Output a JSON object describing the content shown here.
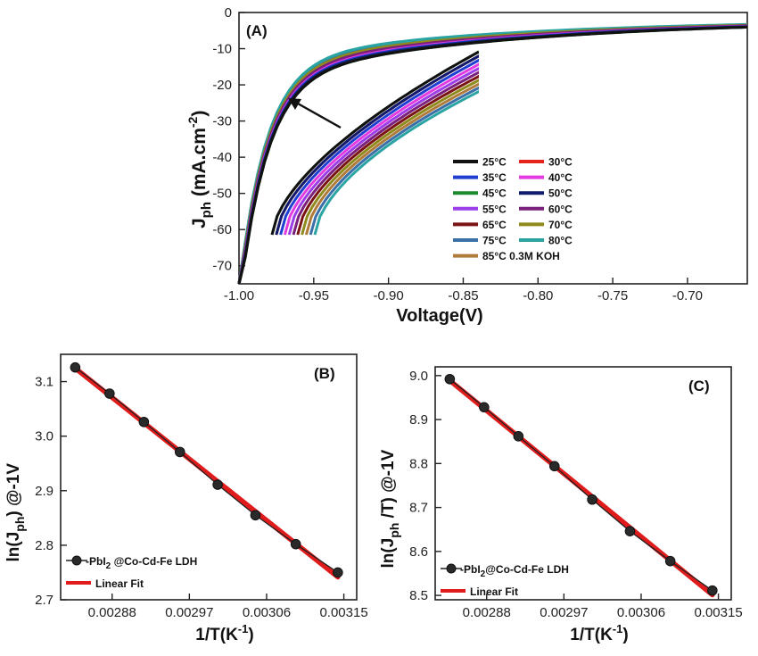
{
  "colors": {
    "fit_line": "#e01b1b",
    "marker": "#2a2a2a"
  },
  "chart_data": [
    {
      "type": "line",
      "panel_label": "(A)",
      "xlabel": "Voltage(V)",
      "ylabel_main": "J",
      "ylabel_sub": "ph",
      "ylabel_unit": " (mA.cm",
      "ylabel_sup": "-2",
      "ylabel_close": ")",
      "xlim": [
        -1.0,
        -0.66
      ],
      "ylim": [
        -75,
        0
      ],
      "xticks": [
        -1.0,
        -0.95,
        -0.9,
        -0.85,
        -0.8,
        -0.75,
        -0.7
      ],
      "xtick_labels": [
        "-1.00",
        "-0.95",
        "-0.90",
        "-0.85",
        "-0.80",
        "-0.75",
        "-0.70"
      ],
      "yticks": [
        0,
        -10,
        -20,
        -30,
        -40,
        -50,
        -60,
        -70
      ],
      "ytick_labels": [
        "0",
        "-10",
        "-20",
        "-30",
        "-40",
        "-50",
        "-60",
        "-70"
      ],
      "legend_position": "bottom-right",
      "series": [
        {
          "name": "25°C",
          "color": "#111111",
          "offset": 0.0
        },
        {
          "name": "30°C",
          "color": "#e3241b",
          "offset": 0.03
        },
        {
          "name": "35°C",
          "color": "#1f3fd1",
          "offset": 0.06
        },
        {
          "name": "40°C",
          "color": "#e33be0",
          "offset": 0.09
        },
        {
          "name": "45°C",
          "color": "#1b8a2e",
          "offset": 0.0
        },
        {
          "name": "50°C",
          "color": "#101b6e",
          "offset": 0.03
        },
        {
          "name": "55°C",
          "color": "#9b3de8",
          "offset": 0.12
        },
        {
          "name": "60°C",
          "color": "#7a1f7a",
          "offset": 0.15
        },
        {
          "name": "65°C",
          "color": "#7a1414",
          "offset": 0.18
        },
        {
          "name": "70°C",
          "color": "#8f8a1c",
          "offset": 0.21
        },
        {
          "name": "75°C",
          "color": "#3a6fa8",
          "offset": 0.27
        },
        {
          "name": "80°C",
          "color": "#2aa3a3",
          "offset": 0.3
        },
        {
          "name": "85°C 0.3M KOH",
          "color": "#b07a3a",
          "offset": 0.24
        }
      ]
    },
    {
      "type": "scatter",
      "panel_label": "(B)",
      "xlabel": "1/T(K",
      "xlabel_sup": "-1",
      "xlabel_close": ")",
      "ylabel": "ln(J",
      "ylabel_sub": "ph",
      "ylabel_close": ") @-1V",
      "xlim": [
        0.00282,
        0.003165
      ],
      "ylim": [
        2.7,
        3.15
      ],
      "xticks": [
        0.00288,
        0.00297,
        0.00306,
        0.00315
      ],
      "xtick_labels": [
        "0.00288",
        "0.00297",
        "0.00306",
        "0.00315"
      ],
      "yticks": [
        2.7,
        2.8,
        2.9,
        3.0,
        3.1
      ],
      "ytick_labels": [
        "2.7",
        "2.8",
        "2.9",
        "3.0",
        "3.1"
      ],
      "x": [
        0.002837,
        0.002877,
        0.002917,
        0.002959,
        0.003003,
        0.003047,
        0.003094,
        0.003143
      ],
      "y": [
        3.126,
        3.078,
        3.026,
        2.971,
        2.911,
        2.855,
        2.802,
        2.75
      ],
      "legend_position": "bottom-left",
      "legend": {
        "data_label": "-PbI",
        "data_sub": "2",
        "data_rest": "  @Co-Cd-Fe LDH",
        "fit_label": "Linear Fit"
      }
    },
    {
      "type": "scatter",
      "panel_label": "(C)",
      "xlabel": "1/T(K",
      "xlabel_sup": "-1",
      "xlabel_close": ")",
      "ylabel": "ln(J",
      "ylabel_sub": "ph",
      "ylabel_close": " /T) @-1V",
      "xlim": [
        0.00282,
        0.003165
      ],
      "ylim": [
        8.49,
        9.02
      ],
      "xticks": [
        0.00288,
        0.00297,
        0.00306,
        0.00315
      ],
      "xtick_labels": [
        "0.00288",
        "0.00297",
        "0.00306",
        "0.00315"
      ],
      "yticks": [
        8.5,
        8.6,
        8.7,
        8.8,
        8.9,
        9.0
      ],
      "ytick_labels": [
        "8.5",
        "8.6",
        "8.7",
        "8.8",
        "8.9",
        "9.0"
      ],
      "x": [
        0.002837,
        0.002877,
        0.002917,
        0.002959,
        0.003003,
        0.003047,
        0.003094,
        0.003143
      ],
      "y": [
        8.992,
        8.928,
        8.862,
        8.794,
        8.718,
        8.646,
        8.578,
        8.511
      ],
      "legend_position": "bottom-left",
      "legend": {
        "data_label": "-PbI",
        "data_sub": "2",
        "data_rest": "@Co-Cd-Fe LDH",
        "fit_label": "Linear Fit"
      }
    }
  ]
}
